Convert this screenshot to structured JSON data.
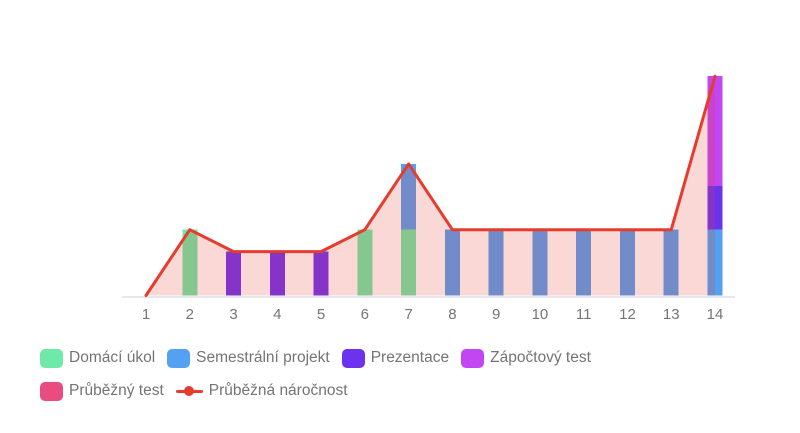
{
  "page": {
    "background": "#ffffff"
  },
  "chart_data": {
    "type": "composed-stacked-bar-with-line-area",
    "title": "",
    "xlabel": "",
    "ylabel": "",
    "x_categories": [
      "1",
      "2",
      "3",
      "4",
      "5",
      "6",
      "7",
      "8",
      "9",
      "10",
      "11",
      "12",
      "13",
      "14"
    ],
    "ylim": [
      0,
      10
    ],
    "grid": false,
    "legend_position": "bottom",
    "bar_series": [
      {
        "key": "domaci-ukol",
        "name": "Domácí úkol",
        "color": "#6FE9A8",
        "values": [
          0,
          3,
          0,
          0,
          0,
          3,
          3,
          0,
          0,
          0,
          0,
          0,
          0,
          0
        ]
      },
      {
        "key": "semestralni-projekt",
        "name": "Semestrální projekt",
        "color": "#54A1F1",
        "values": [
          0,
          0,
          0,
          0,
          0,
          0,
          3,
          3,
          3,
          3,
          3,
          3,
          3,
          3
        ]
      },
      {
        "key": "prezentace",
        "name": "Prezentace",
        "color": "#6C33EE",
        "values": [
          0,
          0,
          2,
          2,
          2,
          0,
          0,
          0,
          0,
          0,
          0,
          0,
          0,
          2
        ]
      },
      {
        "key": "zapoctovy-test",
        "name": "Zápočtový test",
        "color": "#C247F2",
        "values": [
          0,
          0,
          0,
          0,
          0,
          0,
          0,
          0,
          0,
          0,
          0,
          0,
          0,
          5
        ]
      },
      {
        "key": "prubezny-test",
        "name": "Průběžný test",
        "color": "#E94C80",
        "values": [
          0,
          0,
          0,
          0,
          0,
          0,
          0,
          0,
          0,
          0,
          0,
          0,
          0,
          0
        ]
      }
    ],
    "line_series": {
      "key": "prubezna-narocnost",
      "name": "Průběžná náročnost",
      "color": "#E53C2E",
      "area_fill_opacity": 0.2,
      "values": [
        0,
        3,
        2,
        2,
        2,
        3,
        6,
        3,
        3,
        3,
        3,
        3,
        3,
        10
      ]
    },
    "axis": {
      "line_color": "#E7E7EF",
      "label_color": "#757575"
    }
  },
  "legend": {
    "items": [
      {
        "label": "Domácí úkol",
        "color": "#6FE9A8",
        "marker": "swatch"
      },
      {
        "label": "Semestrální projekt",
        "color": "#54A1F1",
        "marker": "swatch"
      },
      {
        "label": "Prezentace",
        "color": "#6C33EE",
        "marker": "swatch"
      },
      {
        "label": "Zápočtový test",
        "color": "#C247F2",
        "marker": "swatch"
      },
      {
        "label": "Průběžný test",
        "color": "#E94C80",
        "marker": "swatch"
      },
      {
        "label": "Průběžná náročnost",
        "color": "#E53C2E",
        "marker": "line-dot"
      }
    ]
  }
}
